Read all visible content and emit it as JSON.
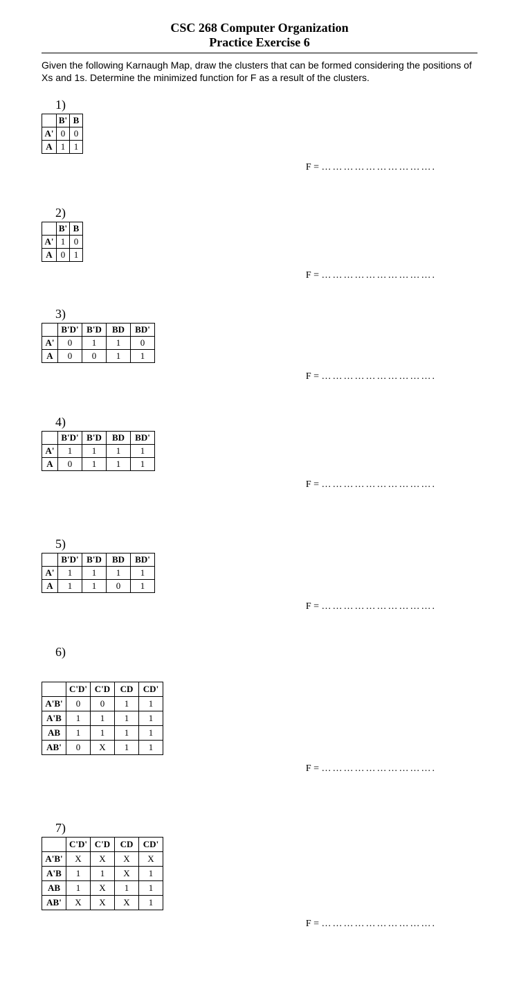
{
  "header": {
    "line1": "CSC 268 Computer Organization",
    "line2": "Practice Exercise 6"
  },
  "instructions": "Given the following Karnaugh Map, draw the clusters that can be formed considering the positions of Xs and 1s. Determine the minimized function for F as a result of the clusters.",
  "answer_prefix": "F = ",
  "answer_dots": "………………………….",
  "problems": {
    "p1": {
      "number": "1)",
      "col_headers": [
        "B'",
        "B"
      ],
      "row_headers": [
        "A'",
        "A"
      ],
      "cells": [
        [
          "0",
          "0"
        ],
        [
          "1",
          "1"
        ]
      ]
    },
    "p2": {
      "number": "2)",
      "col_headers": [
        "B'",
        "B"
      ],
      "row_headers": [
        "A'",
        "A"
      ],
      "cells": [
        [
          "1",
          "0"
        ],
        [
          "0",
          "1"
        ]
      ]
    },
    "p3": {
      "number": "3)",
      "col_headers": [
        "B'D'",
        "B'D",
        "BD",
        "BD'"
      ],
      "row_headers": [
        "A'",
        "A"
      ],
      "cells": [
        [
          "0",
          "1",
          "1",
          "0"
        ],
        [
          "0",
          "0",
          "1",
          "1"
        ]
      ]
    },
    "p4": {
      "number": "4)",
      "col_headers": [
        "B'D'",
        "B'D",
        "BD",
        "BD'"
      ],
      "row_headers": [
        "A'",
        "A"
      ],
      "cells": [
        [
          "1",
          "1",
          "1",
          "1"
        ],
        [
          "0",
          "1",
          "1",
          "1"
        ]
      ]
    },
    "p5": {
      "number": "5)",
      "col_headers": [
        "B'D'",
        "B'D",
        "BD",
        "BD'"
      ],
      "row_headers": [
        "A'",
        "A"
      ],
      "cells": [
        [
          "1",
          "1",
          "1",
          "1"
        ],
        [
          "1",
          "1",
          "0",
          "1"
        ]
      ]
    },
    "p6": {
      "number": "6)",
      "col_headers": [
        "C'D'",
        "C'D",
        "CD",
        "CD'"
      ],
      "row_headers": [
        "A'B'",
        "A'B",
        "AB",
        "AB'"
      ],
      "cells": [
        [
          "0",
          "0",
          "1",
          "1"
        ],
        [
          "1",
          "1",
          "1",
          "1"
        ],
        [
          "1",
          "1",
          "1",
          "1"
        ],
        [
          "0",
          "X",
          "1",
          "1"
        ]
      ]
    },
    "p7": {
      "number": "7)",
      "col_headers": [
        "C'D'",
        "C'D",
        "CD",
        "CD'"
      ],
      "row_headers": [
        "A'B'",
        "A'B",
        "AB",
        "AB'"
      ],
      "cells": [
        [
          "X",
          "X",
          "X",
          "X"
        ],
        [
          "1",
          "1",
          "X",
          "1"
        ],
        [
          "1",
          "X",
          "1",
          "1"
        ],
        [
          "X",
          "X",
          "X",
          "1"
        ]
      ]
    }
  }
}
